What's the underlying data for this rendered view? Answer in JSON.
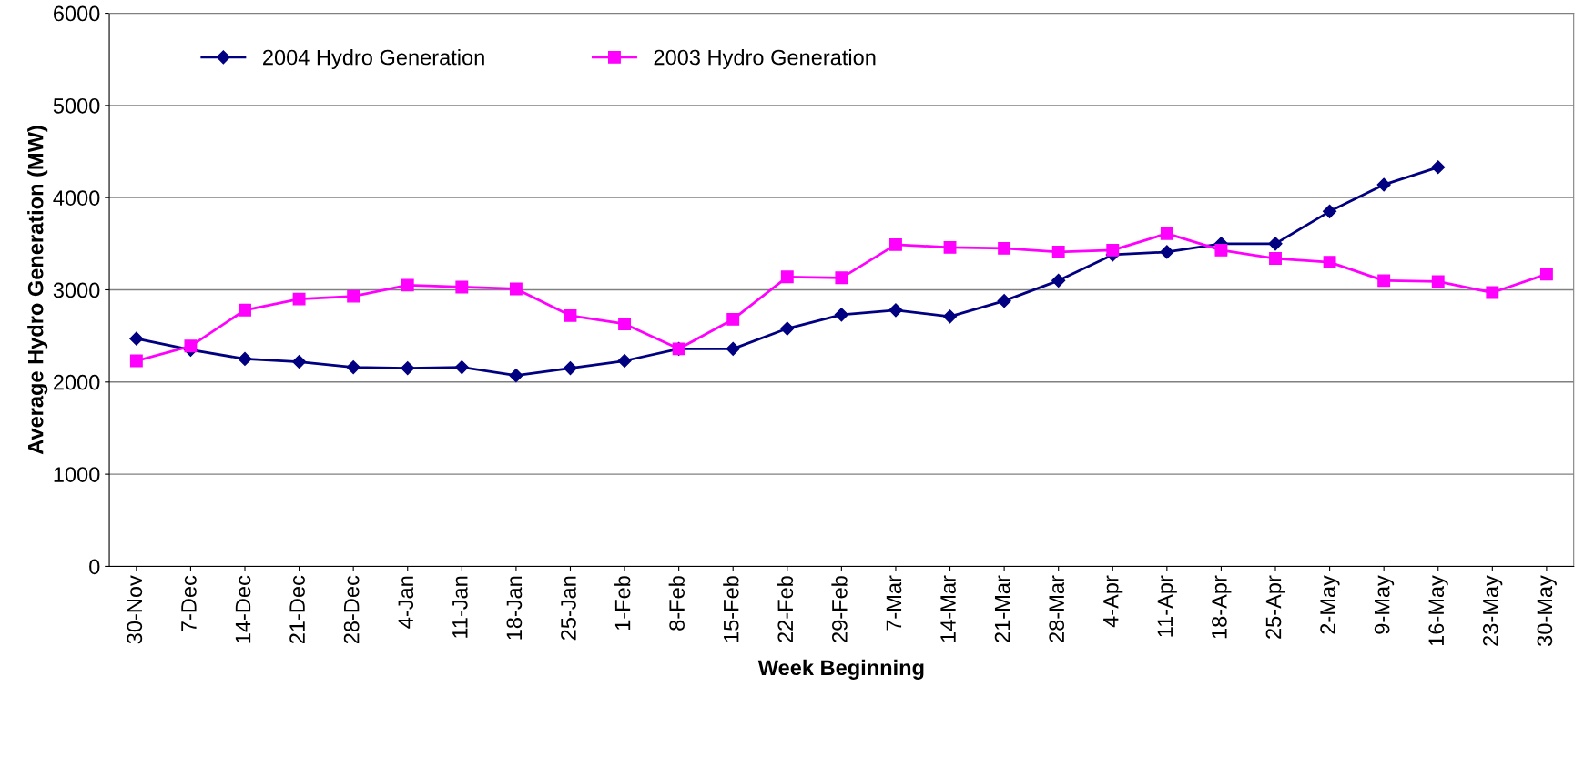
{
  "chart_data": {
    "type": "line",
    "xlabel": "Week Beginning",
    "ylabel": "Average Hydro Generation (MW)",
    "categories": [
      "30-Nov",
      "7-Dec",
      "14-Dec",
      "21-Dec",
      "28-Dec",
      "4-Jan",
      "11-Jan",
      "18-Jan",
      "25-Jan",
      "1-Feb",
      "8-Feb",
      "15-Feb",
      "22-Feb",
      "29-Feb",
      "7-Mar",
      "14-Mar",
      "21-Mar",
      "28-Mar",
      "4-Apr",
      "11-Apr",
      "18-Apr",
      "25-Apr",
      "2-May",
      "9-May",
      "16-May",
      "23-May",
      "30-May"
    ],
    "series": [
      {
        "name": "2004 Hydro Generation",
        "color": "#000080",
        "marker": "diamond",
        "values": [
          2470,
          2350,
          2250,
          2220,
          2160,
          2150,
          2160,
          2070,
          2150,
          2230,
          2360,
          2360,
          2580,
          2730,
          2780,
          2710,
          2880,
          3100,
          3380,
          3410,
          3500,
          3500,
          3850,
          4140,
          4330,
          null,
          null
        ]
      },
      {
        "name": "2003 Hydro Generation",
        "color": "#ff00ff",
        "marker": "square",
        "values": [
          2230,
          2390,
          2780,
          2900,
          2930,
          3050,
          3030,
          3010,
          2720,
          2630,
          2360,
          2680,
          3140,
          3130,
          3490,
          3460,
          3450,
          3410,
          3430,
          3610,
          3430,
          3340,
          3300,
          3100,
          3090,
          2970,
          3170
        ]
      }
    ],
    "ylim": [
      0,
      6000
    ],
    "yticks": [
      0,
      1000,
      2000,
      3000,
      4000,
      5000,
      6000
    ],
    "grid": "y",
    "legend": "top left",
    "line_style": "solid"
  }
}
